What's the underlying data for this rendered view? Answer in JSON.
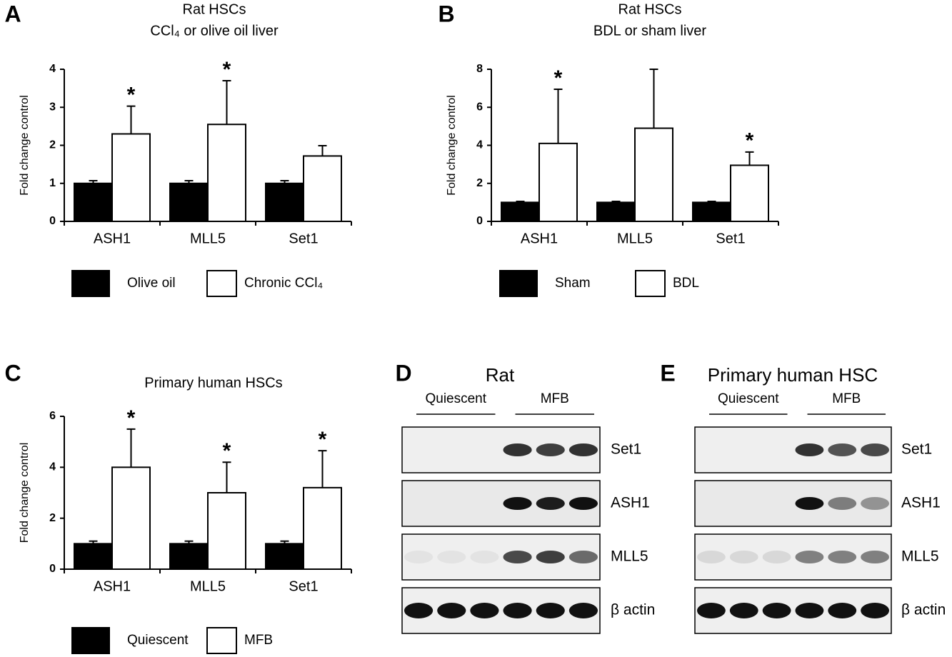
{
  "chart_data": [
    {
      "type": "bar",
      "panel": "A",
      "title": "Rat HSCs",
      "subtitle": "CCl₄ or olive oil liver",
      "y_label": "Fold change control",
      "categories": [
        "ASH1",
        "MLL5",
        "Set1"
      ],
      "series": [
        {
          "name": "Olive oil",
          "color": "#000000",
          "values": [
            1,
            1,
            1
          ],
          "errors": [
            0.07,
            0.07,
            0.07
          ]
        },
        {
          "name": "Chronic CCl₄",
          "color": "#ffffff",
          "values": [
            2.3,
            2.55,
            1.72
          ],
          "errors": [
            0.73,
            1.15,
            0.27
          ]
        }
      ],
      "ylim": [
        0,
        4
      ],
      "yticks": [
        0,
        1,
        2,
        3,
        4
      ],
      "significance": [
        {
          "series": "Chronic CCl₄",
          "category": "ASH1",
          "text": "*"
        },
        {
          "series": "Chronic CCl₄",
          "category": "MLL5",
          "text": "*"
        }
      ]
    },
    {
      "type": "bar",
      "panel": "B",
      "title": "Rat HSCs",
      "subtitle": "BDL or sham liver",
      "y_label": "Fold change control",
      "categories": [
        "ASH1",
        "MLL5",
        "Set1"
      ],
      "series": [
        {
          "name": "Sham",
          "color": "#000000",
          "values": [
            1,
            1,
            1
          ],
          "errors": [
            0.05,
            0.05,
            0.05
          ]
        },
        {
          "name": "BDL",
          "color": "#ffffff",
          "values": [
            4.1,
            4.9,
            2.95
          ],
          "errors": [
            2.85,
            3.1,
            0.7
          ]
        }
      ],
      "ylim": [
        0,
        8
      ],
      "yticks": [
        0,
        2,
        4,
        6,
        8
      ],
      "significance": [
        {
          "series": "BDL",
          "category": "ASH1",
          "text": "*"
        },
        {
          "series": "BDL",
          "category": "Set1",
          "text": "*"
        }
      ]
    },
    {
      "type": "bar",
      "panel": "C",
      "title": "Primary human HSCs",
      "y_label": "Fold change control",
      "categories": [
        "ASH1",
        "MLL5",
        "Set1"
      ],
      "series": [
        {
          "name": "Quiescent",
          "color": "#000000",
          "values": [
            1,
            1,
            1
          ],
          "errors": [
            0.1,
            0.1,
            0.1
          ]
        },
        {
          "name": "MFB",
          "color": "#ffffff",
          "values": [
            4,
            3,
            3.2
          ],
          "errors": [
            1.5,
            1.2,
            1.45
          ]
        }
      ],
      "ylim": [
        0,
        6
      ],
      "yticks": [
        0,
        2,
        4,
        6
      ],
      "significance": [
        {
          "series": "MFB",
          "category": "ASH1",
          "text": "*"
        },
        {
          "series": "MFB",
          "category": "MLL5",
          "text": "*"
        },
        {
          "series": "MFB",
          "category": "Set1",
          "text": "*"
        }
      ]
    }
  ],
  "blots": [
    {
      "panel": "D",
      "title": "Rat",
      "groups": [
        "Quiescent",
        "MFB"
      ],
      "rows": [
        "Set1",
        "ASH1",
        "MLL5",
        "β actin"
      ]
    },
    {
      "panel": "E",
      "title": "Primary human HSC",
      "groups": [
        "Quiescent",
        "MFB"
      ],
      "rows": [
        "Set1",
        "ASH1",
        "MLL5",
        "β actin"
      ]
    }
  ]
}
